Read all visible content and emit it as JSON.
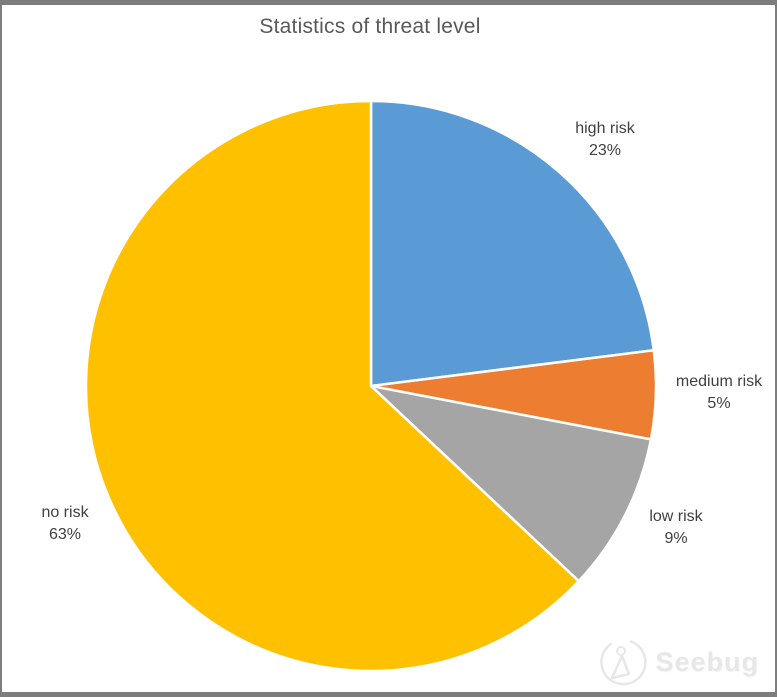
{
  "chart_data": {
    "type": "pie",
    "title": "Statistics of threat level",
    "categories": [
      "high risk",
      "medium risk",
      "low risk",
      "no risk"
    ],
    "values": [
      23,
      5,
      9,
      63
    ],
    "percent_labels": [
      "23%",
      "5%",
      "9%",
      "63%"
    ],
    "colors": [
      "#5B9BD5",
      "#ED7D31",
      "#A5A5A5",
      "#FFC000"
    ],
    "start_angle_deg": 0,
    "direction": "clockwise",
    "legend": "none",
    "slice_border_color": "#ffffff",
    "title_color": "#595959",
    "label_color": "#404040"
  },
  "watermark": {
    "text": "Seebug",
    "color": "#e7e7e7"
  },
  "window": {
    "border_color": "#7d7d7d",
    "background": "#ffffff"
  }
}
